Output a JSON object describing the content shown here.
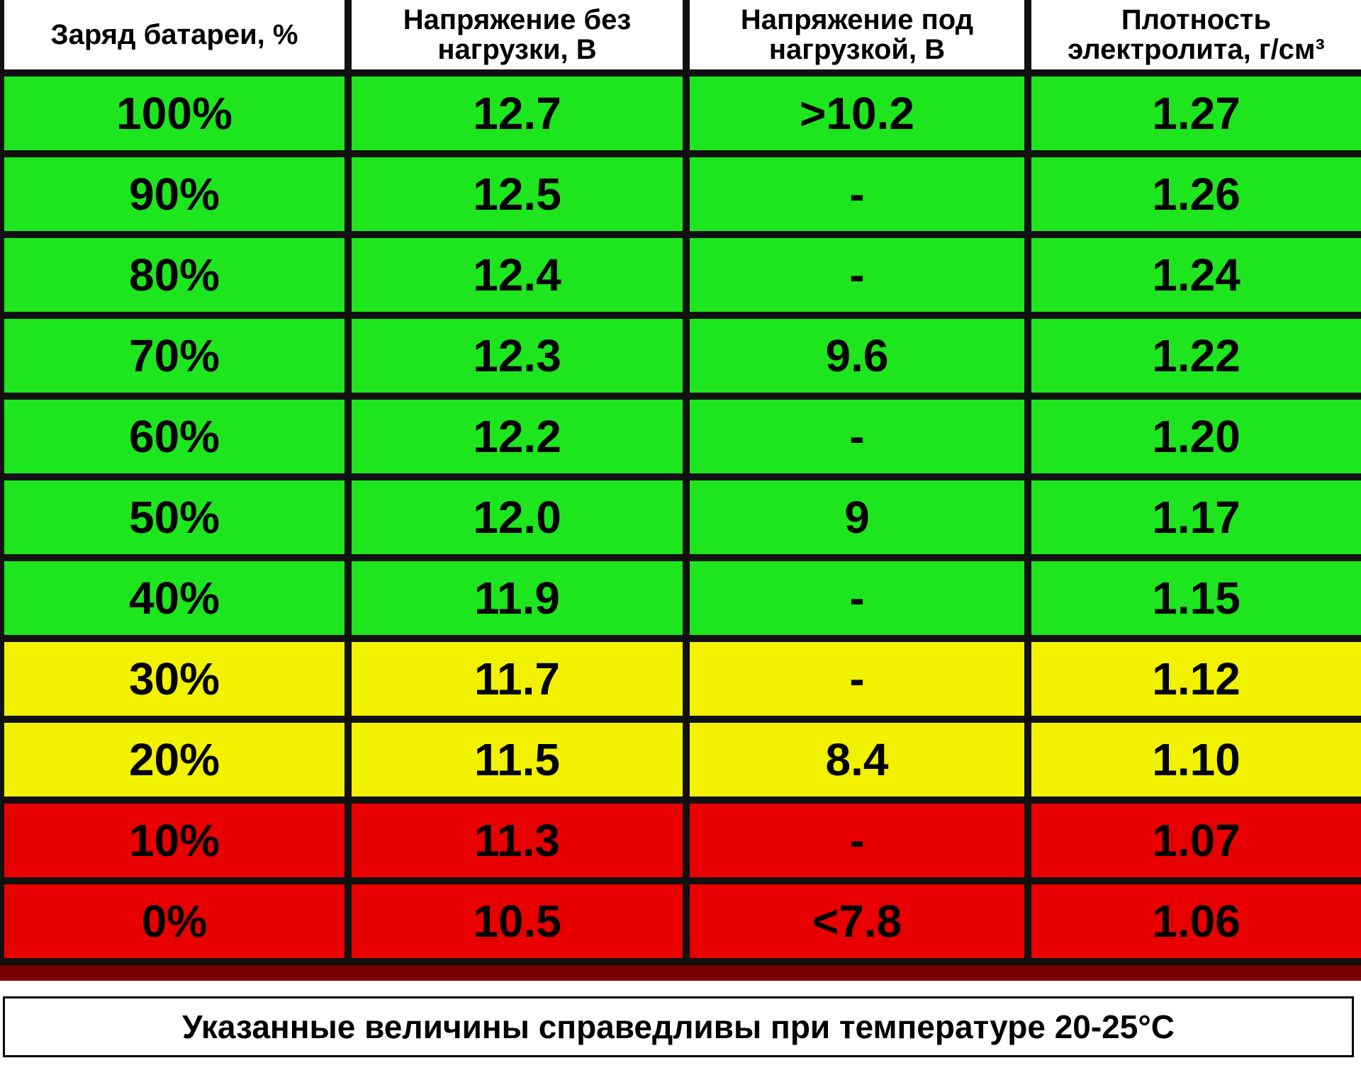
{
  "table": {
    "header": [
      "Заряд батареи, %",
      "Напряжение без нагрузки, В",
      "Напряжение под нагрузкой, В",
      "Плотность электролита, г/см³"
    ],
    "rows": [
      {
        "cells": [
          "100%",
          "12.7",
          ">10.2",
          "1.27"
        ],
        "color": "#1ee61e"
      },
      {
        "cells": [
          "90%",
          "12.5",
          "-",
          "1.26"
        ],
        "color": "#1ee61e"
      },
      {
        "cells": [
          "80%",
          "12.4",
          "-",
          "1.24"
        ],
        "color": "#1ee61e"
      },
      {
        "cells": [
          "70%",
          "12.3",
          "9.6",
          "1.22"
        ],
        "color": "#1ee61e"
      },
      {
        "cells": [
          "60%",
          "12.2",
          "-",
          "1.20"
        ],
        "color": "#1ee61e"
      },
      {
        "cells": [
          "50%",
          "12.0",
          "9",
          "1.17"
        ],
        "color": "#1ee61e"
      },
      {
        "cells": [
          "40%",
          "11.9",
          "-",
          "1.15"
        ],
        "color": "#1ee61e"
      },
      {
        "cells": [
          "30%",
          "11.7",
          "-",
          "1.12"
        ],
        "color": "#f2f200"
      },
      {
        "cells": [
          "20%",
          "11.5",
          "8.4",
          "1.10"
        ],
        "color": "#f2f200"
      },
      {
        "cells": [
          "10%",
          "11.3",
          "-",
          "1.07"
        ],
        "color": "#e80000"
      },
      {
        "cells": [
          "0%",
          "10.5",
          "<7.8",
          "1.06"
        ],
        "color": "#e80000"
      }
    ]
  },
  "footnote": "Указанные величины справедливы при температуре 20-25°C"
}
